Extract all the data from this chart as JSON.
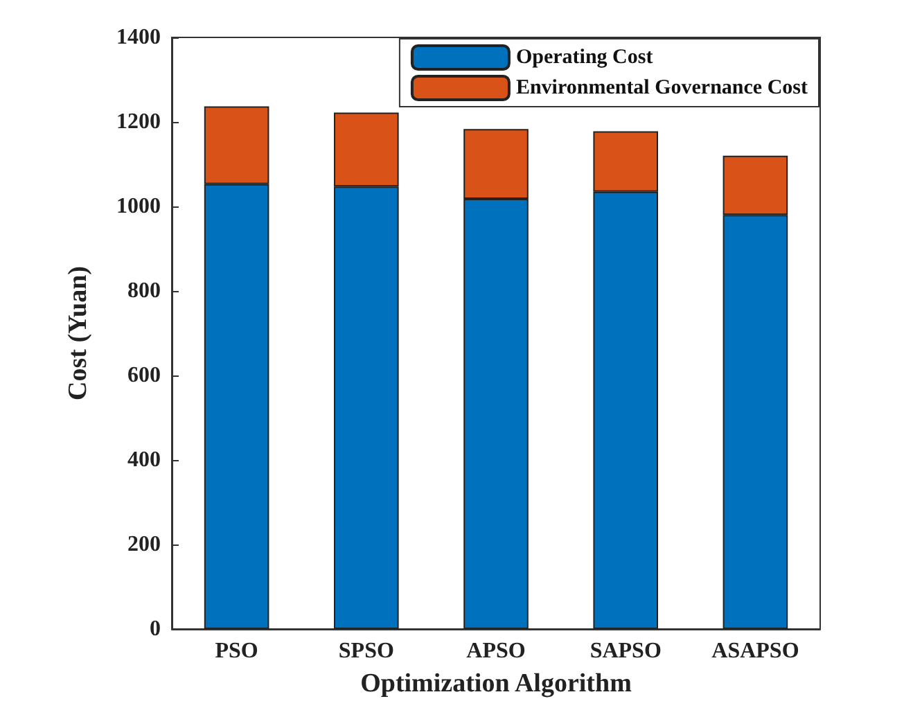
{
  "chart_data": {
    "type": "bar",
    "stacked": true,
    "xlabel": "Optimization Algorithm",
    "ylabel": "Cost (Yuan)",
    "categories": [
      "PSO",
      "SPSO",
      "APSO",
      "SAPSO",
      "ASAPSO"
    ],
    "series": [
      {
        "name": "Operating Cost",
        "color": "#0072bd",
        "values": [
          1053,
          1047,
          1018,
          1035,
          980
        ]
      },
      {
        "name": "Environmental Governance Cost",
        "color": "#d95319",
        "values": [
          184,
          175,
          165,
          143,
          140
        ]
      }
    ],
    "ylim": [
      0,
      1400
    ],
    "yticks": [
      0,
      200,
      400,
      600,
      800,
      1000,
      1200,
      1400
    ],
    "grid": false,
    "legend": "top right"
  }
}
